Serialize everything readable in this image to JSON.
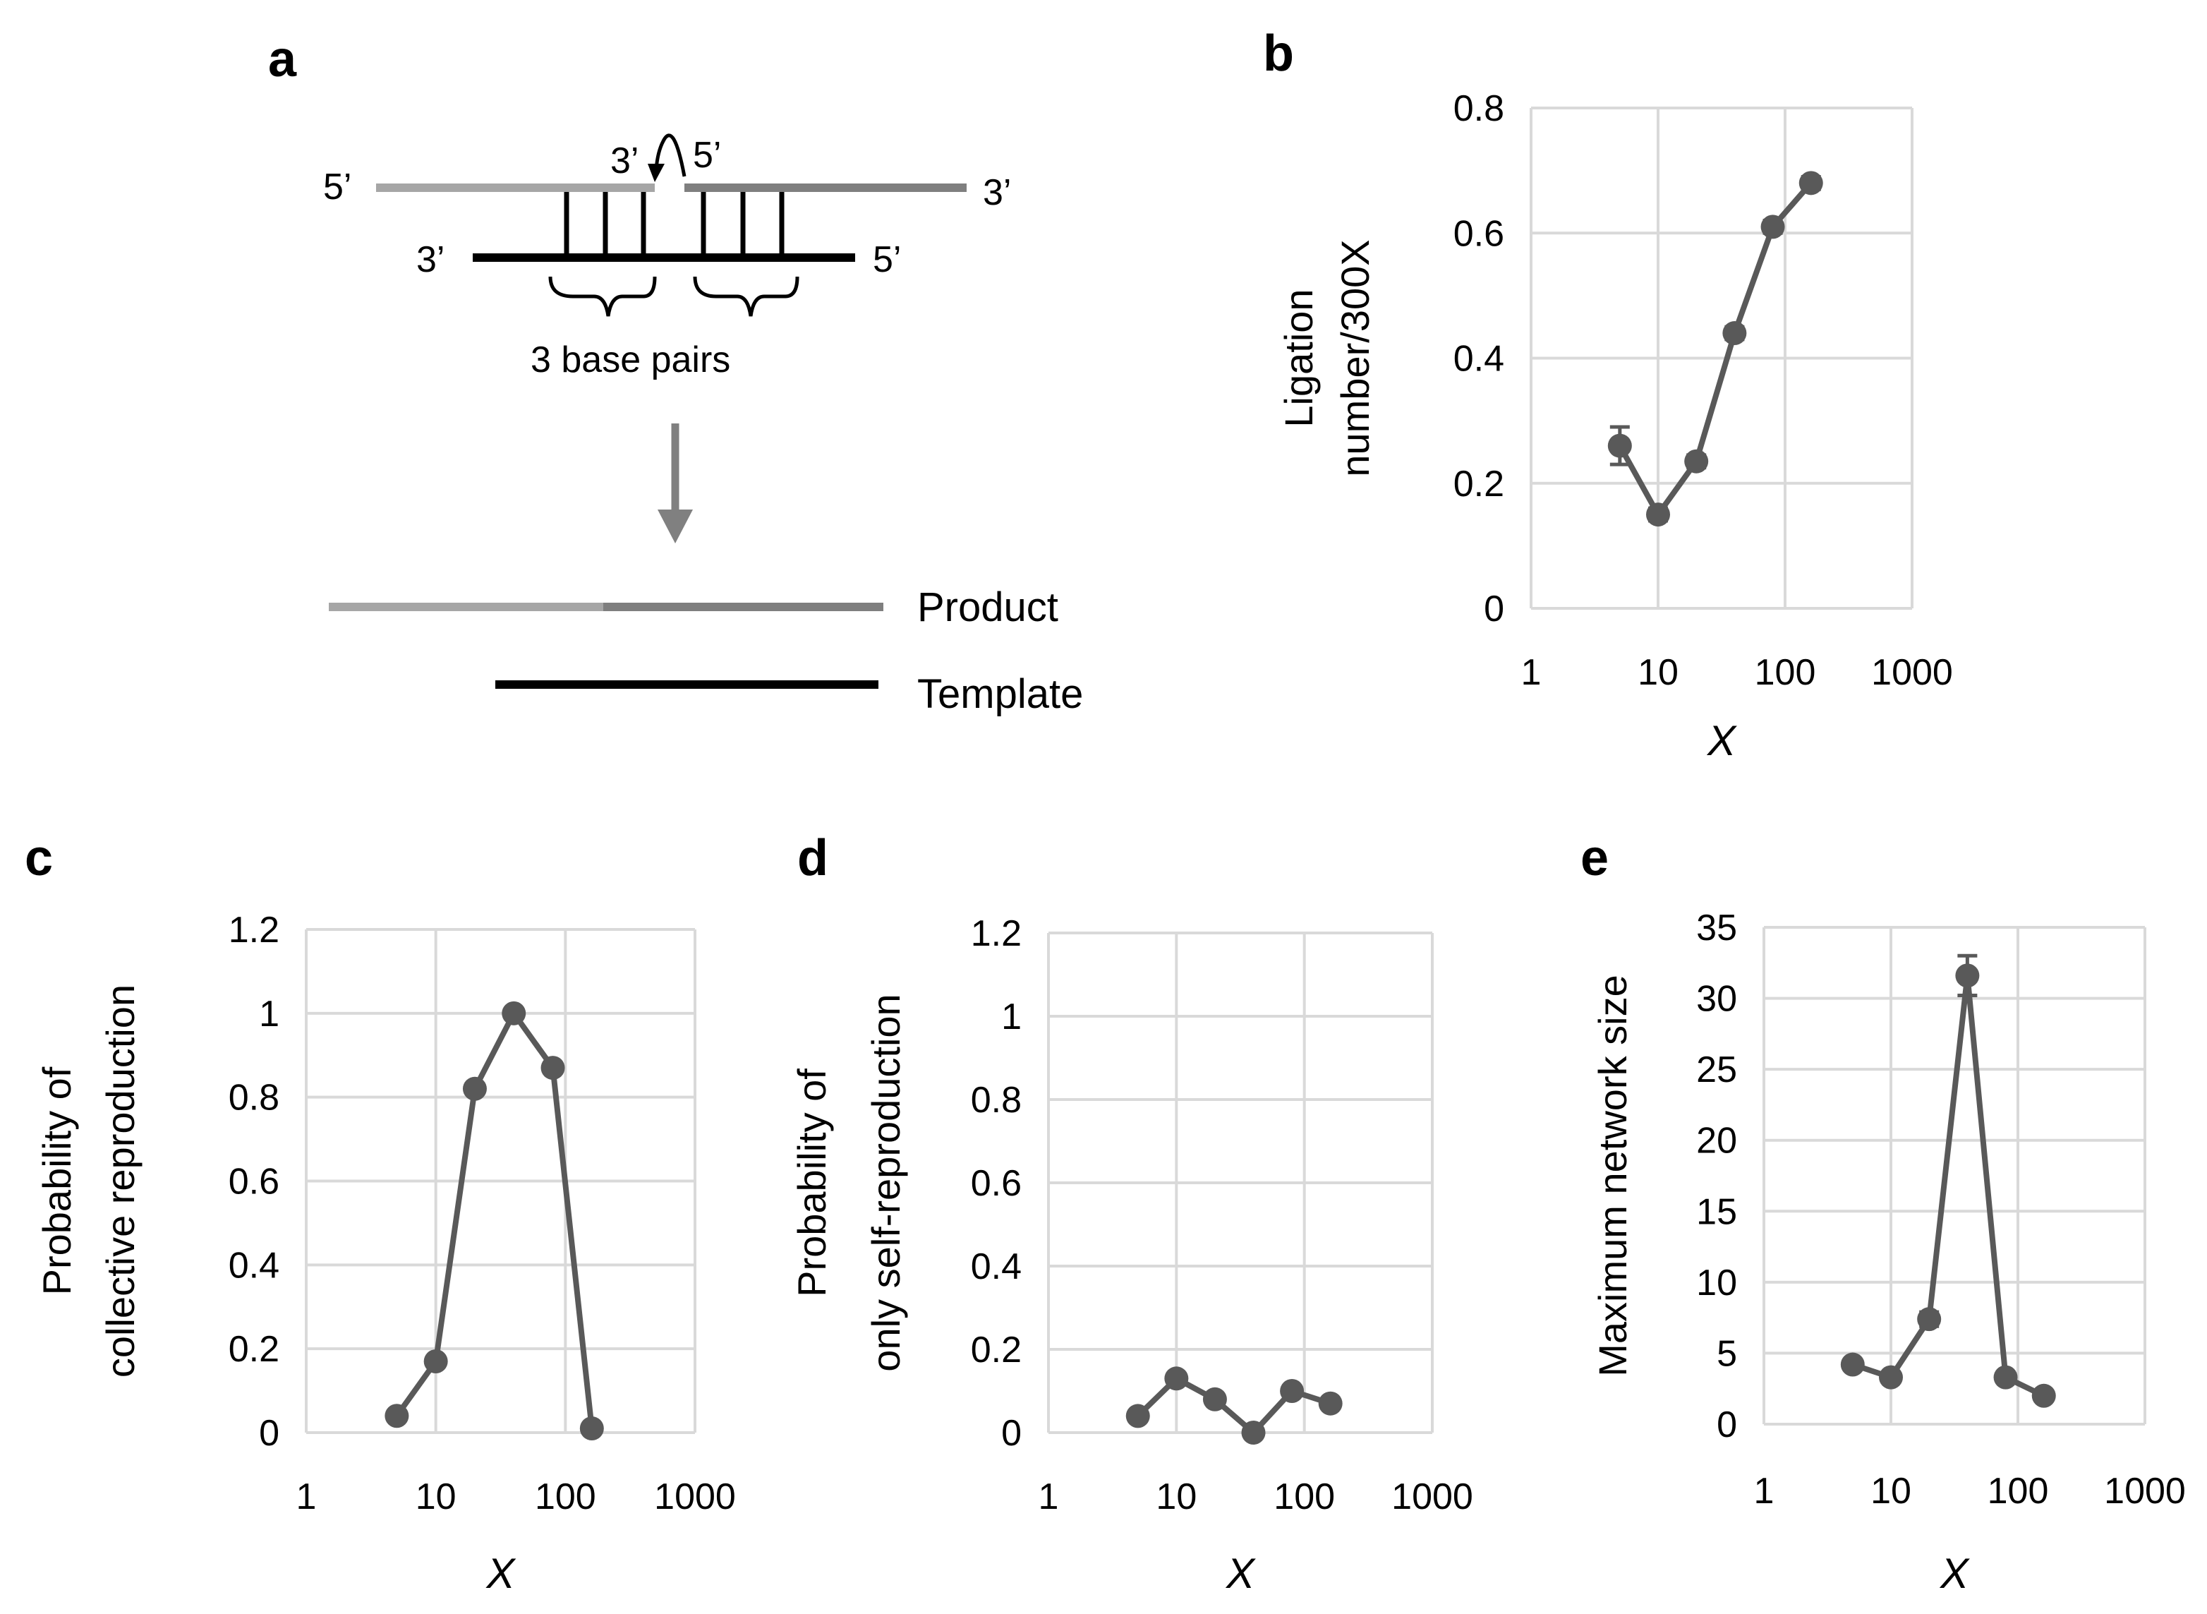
{
  "diagram": {
    "letter": "a",
    "strand_ends": {
      "top_left_5": "5’",
      "top_left_3": "3’",
      "top_right_5": "5’",
      "top_right_3": "3’",
      "template_3": "3’",
      "template_5": "5’"
    },
    "base_pairs_label": "3 base pairs",
    "product_label": "Product",
    "template_label": "Template",
    "colors": {
      "left_strand": "#a6a6a6",
      "right_strand": "#7f7f7f",
      "template": "#000000",
      "arrow": "#808080"
    }
  },
  "chart_data": [
    {
      "id": "b",
      "letter": "b",
      "type": "line",
      "x_scale": "log",
      "xlim": [
        1,
        1000
      ],
      "x_ticks": [
        "1",
        "10",
        "100",
        "1000"
      ],
      "ylim": [
        0,
        0.8
      ],
      "y_ticks": [
        "0",
        "0.2",
        "0.4",
        "0.6",
        "0.8"
      ],
      "ylabel_lines": [
        "Ligation",
        "number/300X"
      ],
      "xlabel": "X",
      "x": [
        5,
        10,
        20,
        40,
        80,
        160
      ],
      "y": [
        0.26,
        0.15,
        0.235,
        0.44,
        0.61,
        0.68
      ],
      "err": [
        0.03,
        0.01,
        0.01,
        0.01,
        0.01,
        0.01
      ]
    },
    {
      "id": "c",
      "letter": "c",
      "type": "line",
      "x_scale": "log",
      "xlim": [
        1,
        1000
      ],
      "x_ticks": [
        "1",
        "10",
        "100",
        "1000"
      ],
      "ylim": [
        0,
        1.2
      ],
      "y_ticks": [
        "0",
        "0.2",
        "0.4",
        "0.6",
        "0.8",
        "1",
        "1.2"
      ],
      "ylabel_lines": [
        "Probability of",
        "collective reproduction"
      ],
      "xlabel": "X",
      "x": [
        5,
        10,
        20,
        40,
        80,
        160
      ],
      "y": [
        0.04,
        0.17,
        0.82,
        1.0,
        0.87,
        0.01
      ],
      "err": [
        0,
        0,
        0,
        0,
        0,
        0
      ]
    },
    {
      "id": "d",
      "letter": "d",
      "type": "line",
      "x_scale": "log",
      "xlim": [
        1,
        1000
      ],
      "x_ticks": [
        "1",
        "10",
        "100",
        "1000"
      ],
      "ylim": [
        0,
        1.2
      ],
      "y_ticks": [
        "0",
        "0.2",
        "0.4",
        "0.6",
        "0.8",
        "1",
        "1.2"
      ],
      "ylabel_lines": [
        "Probability of",
        "only self-reproduction"
      ],
      "xlabel": "X",
      "x": [
        5,
        10,
        20,
        40,
        80,
        160
      ],
      "y": [
        0.04,
        0.13,
        0.08,
        0.0,
        0.1,
        0.07
      ],
      "err": [
        0,
        0,
        0,
        0,
        0,
        0
      ]
    },
    {
      "id": "e",
      "letter": "e",
      "type": "line",
      "x_scale": "log",
      "xlim": [
        1,
        1000
      ],
      "x_ticks": [
        "1",
        "10",
        "100",
        "1000"
      ],
      "ylim": [
        0,
        35
      ],
      "y_ticks": [
        "0",
        "5",
        "10",
        "15",
        "20",
        "25",
        "30",
        "35"
      ],
      "ylabel_lines": [
        "Maximum network size"
      ],
      "xlabel": "X",
      "x": [
        5,
        10,
        20,
        40,
        80,
        160
      ],
      "y": [
        4.2,
        3.3,
        7.4,
        31.6,
        3.3,
        2.0
      ],
      "err": [
        0.3,
        0.3,
        0.5,
        1.4,
        0.3,
        0.2
      ]
    }
  ]
}
